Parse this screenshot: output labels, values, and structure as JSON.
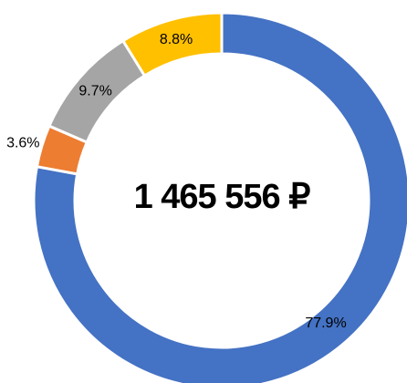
{
  "chart_data": {
    "type": "donut",
    "center_label": "1 465 556 ₽",
    "categories": [
      null,
      null,
      null,
      null
    ],
    "values": [
      77.9,
      3.6,
      9.7,
      8.8
    ],
    "value_labels": [
      "77.9%",
      "3.6%",
      "9.7%",
      "8.8%"
    ],
    "colors": [
      "#4472c4",
      "#ed7d31",
      "#a5a5a5",
      "#ffc000"
    ]
  }
}
